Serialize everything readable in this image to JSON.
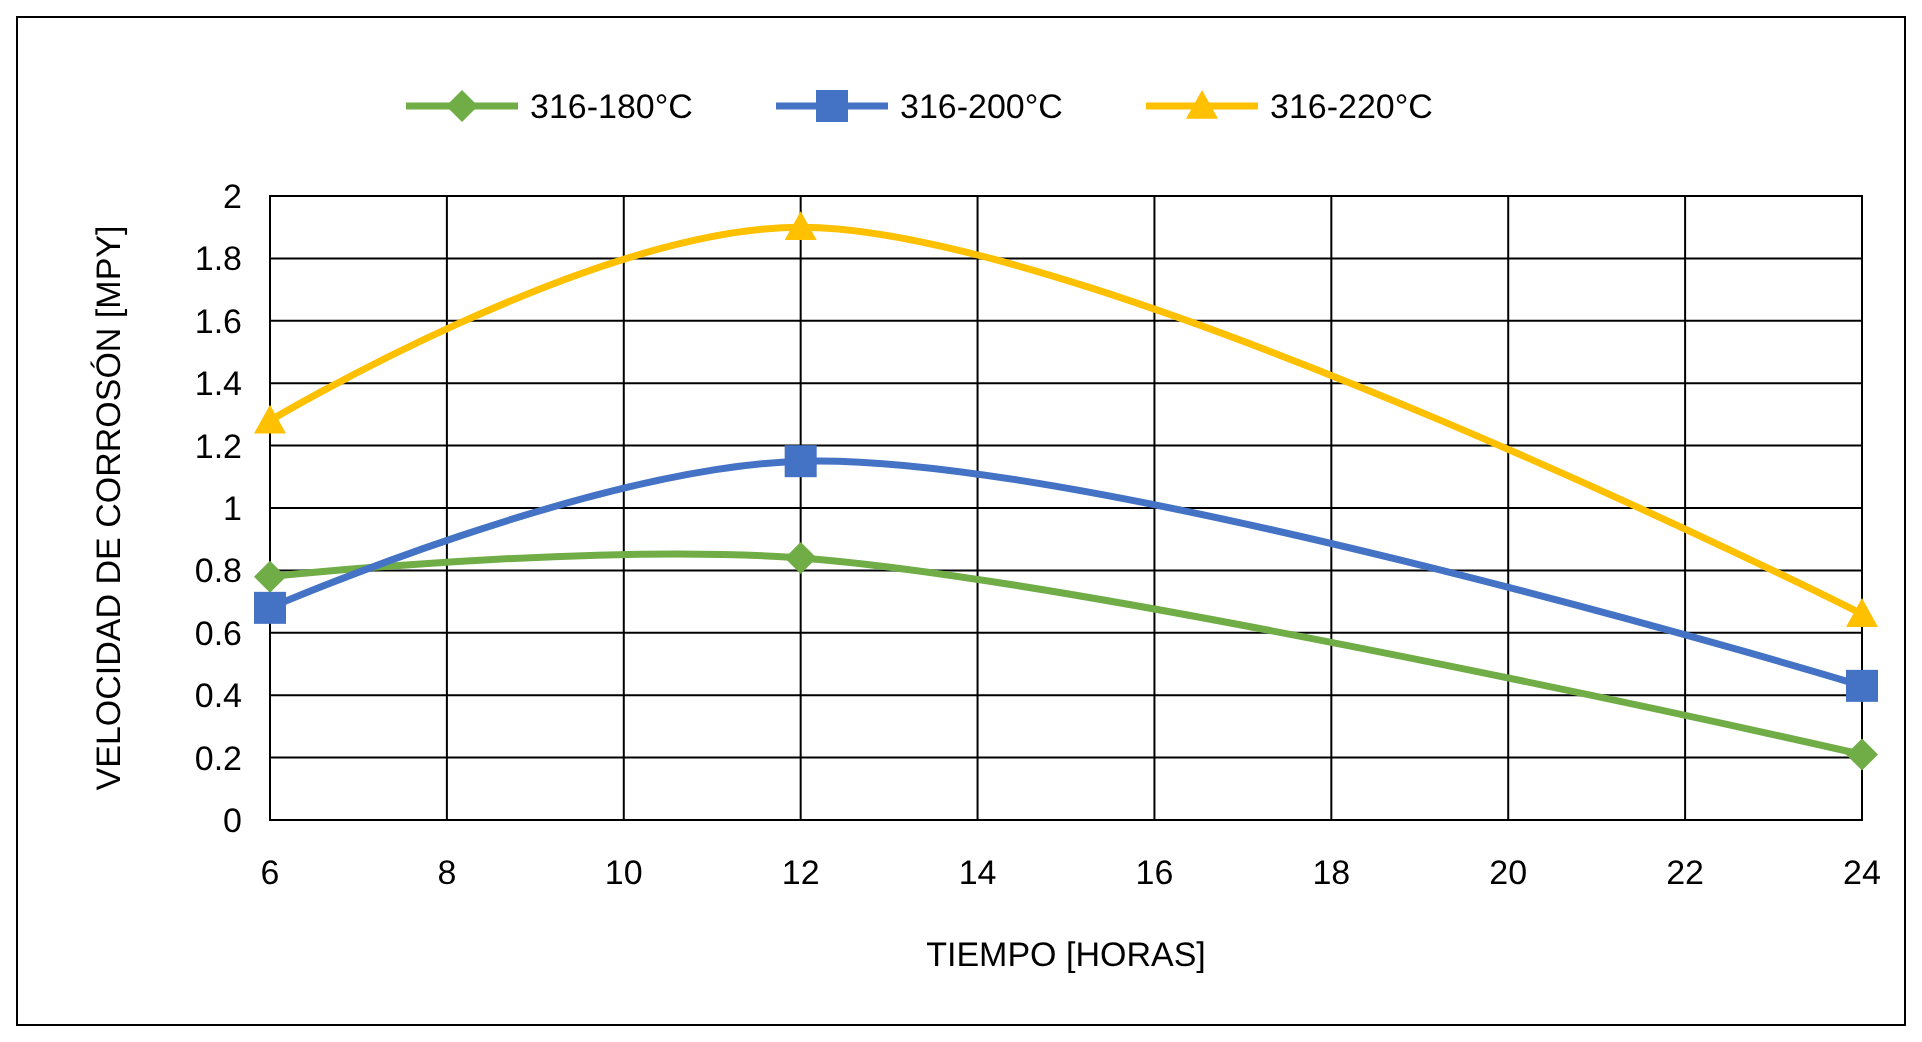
{
  "chart_data": {
    "type": "line",
    "xlabel": "TIEMPO [HORAS]",
    "ylabel": "VELOCIDAD DE CORROSÓN [MPY]",
    "x": [
      6,
      12,
      24
    ],
    "series": [
      {
        "name": "316-180°C",
        "color": "#70ad47",
        "marker": "diamond",
        "values": [
          0.78,
          0.84,
          0.21
        ]
      },
      {
        "name": "316-200°C",
        "color": "#4472c4",
        "marker": "square",
        "values": [
          0.68,
          1.15,
          0.43
        ]
      },
      {
        "name": "316-220°C",
        "color": "#ffc000",
        "marker": "triangle",
        "values": [
          1.28,
          1.9,
          0.66
        ]
      }
    ],
    "xlim": [
      6,
      24
    ],
    "xticks": [
      6,
      8,
      10,
      12,
      14,
      16,
      18,
      20,
      22,
      24
    ],
    "ylim": [
      0,
      2
    ],
    "yticks": [
      0,
      0.2,
      0.4,
      0.6,
      0.8,
      1,
      1.2,
      1.4,
      1.6,
      1.8,
      2
    ],
    "grid": true,
    "legend": "top",
    "line_style": "solid"
  }
}
